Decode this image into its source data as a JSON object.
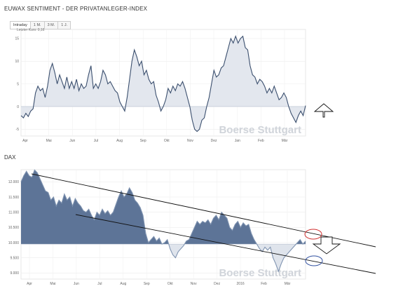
{
  "header": {
    "title": "EUWAX SENTIMENT - DER PRIVATANLEGER-INDEX",
    "tabs": [
      {
        "label": "Intraday",
        "active": true
      },
      {
        "label": "1 M.",
        "active": false
      },
      {
        "label": "3 M.",
        "active": false
      },
      {
        "label": "1 J.",
        "active": false
      }
    ]
  },
  "watermark": "Boerse Stuttgart",
  "chart_data": [
    {
      "type": "area",
      "title": "EUWAX SENTIMENT - DER PRIVATANLEGER-INDEX",
      "legend_text": "Letzter Kurs: 0,16",
      "x_tick_labels": [
        "Apr",
        "Mai",
        "Jun",
        "Jul",
        "Aug",
        "Sep",
        "Okt",
        "Nov",
        "Dez",
        "Jan",
        "Feb",
        "Mär"
      ],
      "y_ticks": [
        15,
        10,
        5,
        0,
        -5
      ],
      "ylim": [
        -6.5,
        17
      ],
      "baseline": 0,
      "grid": true,
      "color": "#3b4f6e",
      "fill": "#e3e7ee",
      "series": [
        {
          "values": [
            -2,
            -2.5,
            -1.5,
            -2.2,
            -1,
            -0.5,
            3,
            4.5,
            3.5,
            4,
            2,
            4.5,
            8,
            9.5,
            7.5,
            5,
            7,
            5.5,
            4,
            6.5,
            4,
            5.5,
            4,
            6,
            3.5,
            5,
            4,
            4.5,
            7,
            9,
            4,
            5,
            4,
            5.5,
            8,
            7,
            5,
            5.5,
            4.5,
            3.5,
            3,
            1,
            0,
            -1,
            2,
            6,
            10,
            12.5,
            11,
            9,
            10,
            7,
            8,
            6,
            5,
            5.5,
            2.5,
            1,
            -1,
            0,
            1.5,
            4,
            3,
            4.5,
            3.5,
            5,
            4.5,
            5.5,
            4,
            2,
            0,
            -3,
            -5,
            -5.5,
            -5,
            -3,
            -2.5,
            0,
            2,
            5,
            8,
            6.5,
            7,
            8.5,
            9,
            11,
            13,
            15,
            14,
            15.5,
            14,
            15,
            15.5,
            13,
            12.5,
            9,
            7,
            6.5,
            5,
            6,
            5.5,
            4.5,
            3,
            4,
            3,
            4.5,
            3,
            1.5,
            2,
            3,
            2,
            0,
            -1.5,
            -2.5,
            -3.5,
            -2,
            -1,
            -2,
            0.2
          ]
        }
      ]
    },
    {
      "type": "area",
      "title": "DAX",
      "x_tick_labels": [
        "Apr",
        "Mai",
        "Jun",
        "Jul",
        "Aug",
        "Sep",
        "Okt",
        "Nov",
        "Dez",
        "2016",
        "Feb",
        "Mär"
      ],
      "y_ticks": [
        12000,
        11500,
        11000,
        10500,
        10000,
        9500,
        9000
      ],
      "ylim": [
        8800,
        12400
      ],
      "baseline": 9950,
      "grid": true,
      "color": "#5d7497",
      "fill": "#e3e7ee",
      "annotations": "two downward-sloping parallel trend channel lines, red ellipse on upper line, blue ellipse on lower line, outlined down-arrow between them; outlined up-arrow next to the sentiment chart",
      "series": [
        {
          "values": [
            12000,
            12200,
            12350,
            12200,
            12150,
            12390,
            12300,
            12100,
            11900,
            11700,
            11650,
            11400,
            11500,
            11200,
            11400,
            11300,
            11600,
            11400,
            11500,
            11200,
            11450,
            11300,
            11200,
            11050,
            11000,
            11100,
            10900,
            10750,
            11000,
            10900,
            11100,
            10950,
            11050,
            10900,
            11000,
            11250,
            11500,
            11700,
            11500,
            11600,
            11800,
            11650,
            11400,
            11300,
            11150,
            10900,
            10300,
            10000,
            10100,
            10200,
            10050,
            10150,
            9950,
            10000,
            10100,
            9800,
            9600,
            9500,
            9700,
            9800,
            9900,
            10050,
            10100,
            10300,
            10500,
            10700,
            10600,
            10700,
            10650,
            10750,
            10600,
            10800,
            10900,
            10750,
            11000,
            10900,
            10800,
            10500,
            10400,
            10600,
            10700,
            10500,
            10650,
            10550,
            10600,
            10300,
            10100,
            9950,
            9800,
            9700,
            9850,
            9750,
            9850,
            9500,
            9300,
            9050,
            9300,
            9500,
            9600,
            9700,
            9800,
            9900,
            10000,
            10100,
            9950,
            10050
          ]
        }
      ]
    }
  ]
}
